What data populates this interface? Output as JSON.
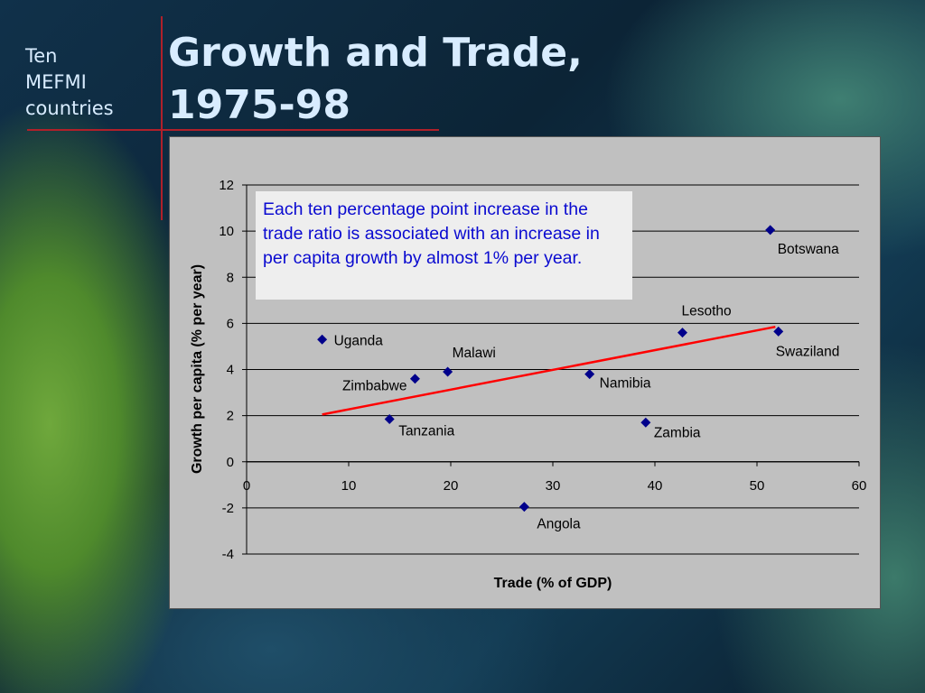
{
  "slide": {
    "subtitle_lines": [
      "Ten",
      "MEFMI",
      "countries"
    ],
    "title_lines": [
      "Growth and Trade,",
      "1975-98"
    ]
  },
  "note": "Each ten percentage point increase in the trade ratio is associated with an increase in per capita growth by almost 1% per year.",
  "colors": {
    "title_text": "#d8ecff",
    "plot_background": "#c0c0c0",
    "marker": "#00008b",
    "trend_line": "#ff0000",
    "note_text": "#0a0ad0"
  },
  "chart_data": {
    "type": "scatter",
    "xlabel": "Trade (% of GDP)",
    "ylabel": "Growth per capita (% per year)",
    "xlim": [
      0,
      60
    ],
    "ylim": [
      -4,
      12
    ],
    "x_ticks": [
      0,
      10,
      20,
      30,
      40,
      50,
      60
    ],
    "y_ticks": [
      -4,
      -2,
      0,
      2,
      4,
      6,
      8,
      10,
      12
    ],
    "grid": "horizontal",
    "marker": "diamond",
    "points": [
      {
        "label": "Uganda",
        "x": 7.4,
        "y": 5.3
      },
      {
        "label": "Zimbabwe",
        "x": 16.5,
        "y": 3.6
      },
      {
        "label": "Malawi",
        "x": 19.7,
        "y": 3.9
      },
      {
        "label": "Tanzania",
        "x": 14.0,
        "y": 1.85
      },
      {
        "label": "Angola",
        "x": 27.2,
        "y": -1.95
      },
      {
        "label": "Namibia",
        "x": 33.6,
        "y": 3.8
      },
      {
        "label": "Zambia",
        "x": 39.1,
        "y": 1.7
      },
      {
        "label": "Lesotho",
        "x": 42.7,
        "y": 5.6
      },
      {
        "label": "Botswana",
        "x": 51.3,
        "y": 10.05
      },
      {
        "label": "Swaziland",
        "x": 52.1,
        "y": 5.65
      }
    ],
    "trend_line": {
      "x": [
        7.4,
        51.8
      ],
      "y": [
        2.05,
        5.85
      ]
    }
  }
}
